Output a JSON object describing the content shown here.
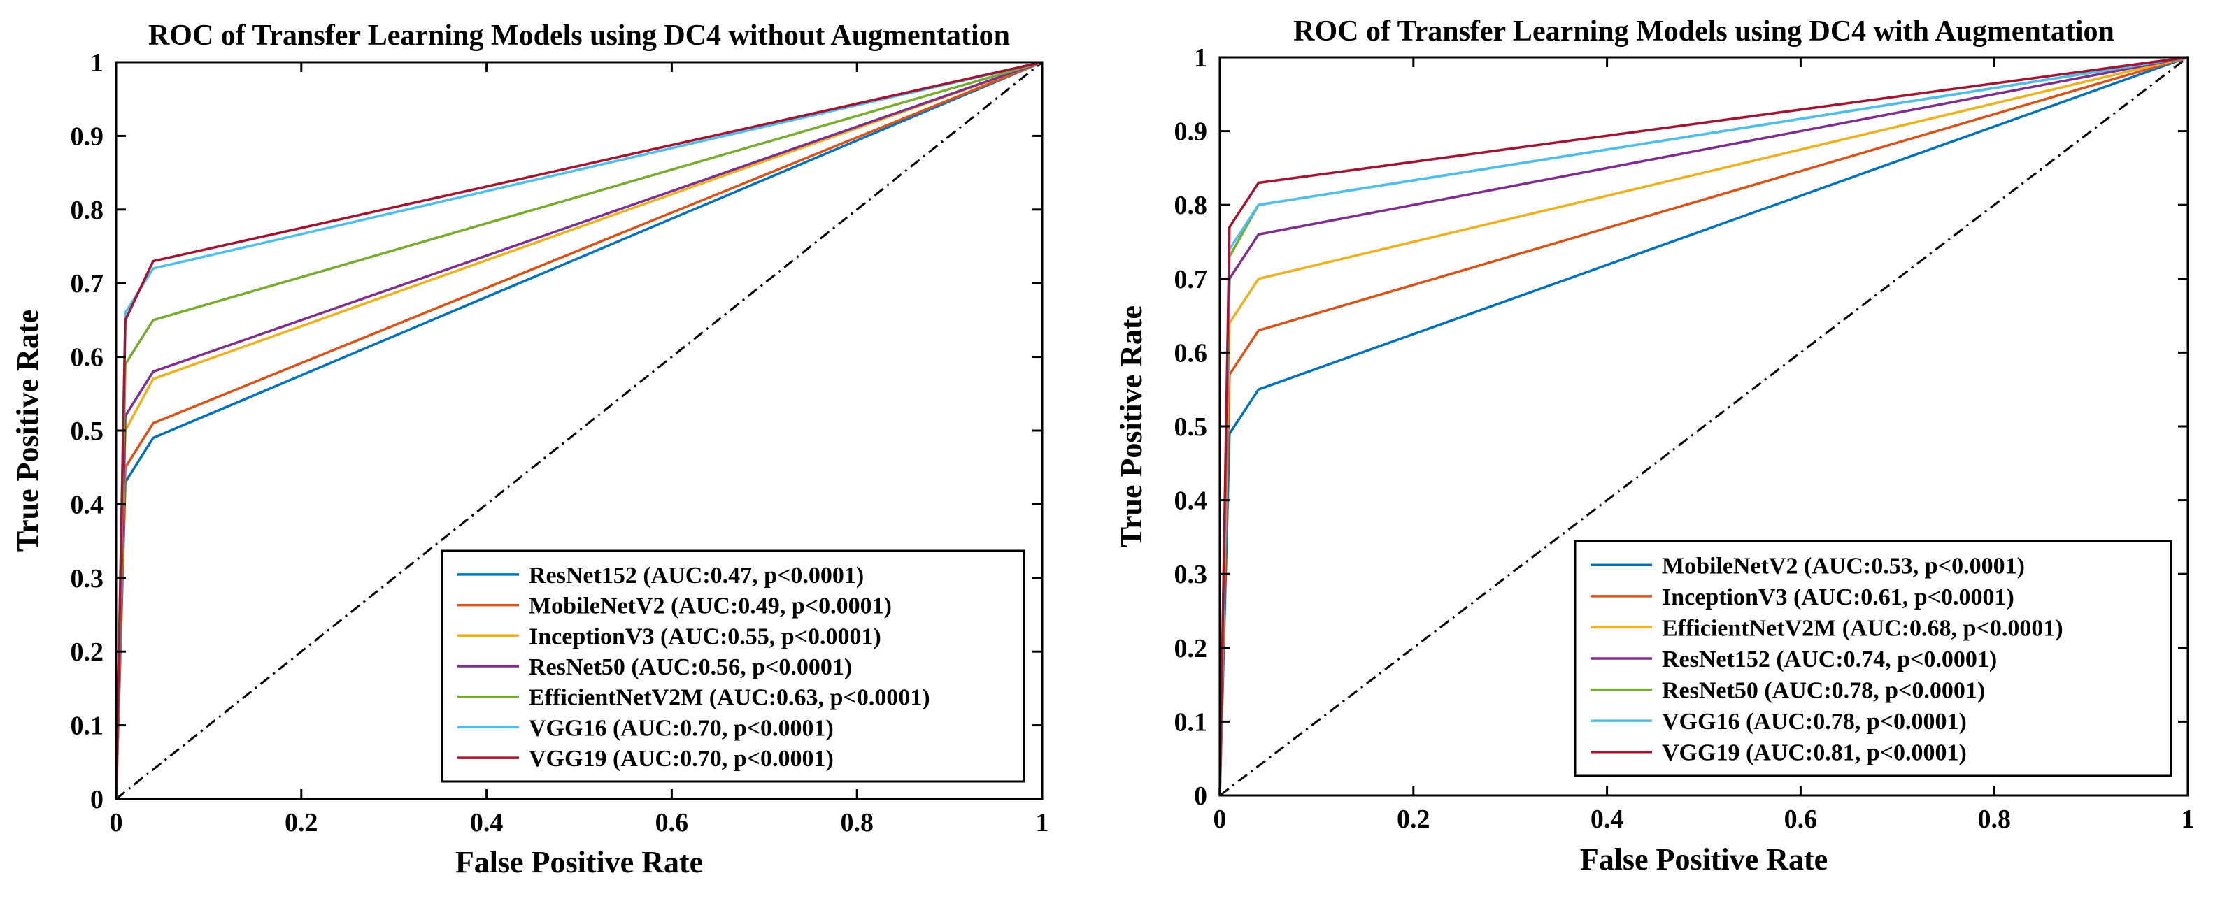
{
  "chart_data": [
    {
      "type": "line",
      "title": "ROC of Transfer Learning Models using DC4 without Augmentation",
      "xlabel": "False Positive Rate",
      "ylabel": "True Positive Rate",
      "xlim": [
        0,
        1
      ],
      "ylim": [
        0,
        1
      ],
      "xticks": [
        "0",
        "0.2",
        "0.4",
        "0.6",
        "0.8",
        "1"
      ],
      "yticks": [
        "0",
        "0.1",
        "0.2",
        "0.3",
        "0.4",
        "0.5",
        "0.6",
        "0.7",
        "0.8",
        "0.9",
        "1"
      ],
      "legend_position": "bottom-right",
      "diagonal": {
        "style": "dash-dot",
        "color": "#000000",
        "x": [
          0,
          1
        ],
        "y": [
          0,
          1
        ]
      },
      "series": [
        {
          "name": "ResNet152",
          "label": "ResNet152 (AUC:0.47, p<0.0001)",
          "color": "#0072BD",
          "x": [
            0,
            0.01,
            0.04,
            1
          ],
          "y": [
            0,
            0.43,
            0.49,
            1
          ]
        },
        {
          "name": "MobileNetV2",
          "label": "MobileNetV2 (AUC:0.49, p<0.0001)",
          "color": "#D95319",
          "x": [
            0,
            0.01,
            0.04,
            1
          ],
          "y": [
            0,
            0.45,
            0.51,
            1
          ]
        },
        {
          "name": "InceptionV3",
          "label": "InceptionV3 (AUC:0.55, p<0.0001)",
          "color": "#EDB120",
          "x": [
            0,
            0.01,
            0.04,
            1
          ],
          "y": [
            0,
            0.5,
            0.57,
            1
          ]
        },
        {
          "name": "ResNet50",
          "label": "ResNet50 (AUC:0.56, p<0.0001)",
          "color": "#7E2F8E",
          "x": [
            0,
            0.01,
            0.04,
            1
          ],
          "y": [
            0,
            0.52,
            0.58,
            1
          ]
        },
        {
          "name": "EfficientNetV2M",
          "label": "EfficientNetV2M (AUC:0.63, p<0.0001)",
          "color": "#77AC30",
          "x": [
            0,
            0.01,
            0.04,
            1
          ],
          "y": [
            0,
            0.59,
            0.65,
            1
          ]
        },
        {
          "name": "VGG16",
          "label": "VGG16 (AUC:0.70, p<0.0001)",
          "color": "#4DBEEE",
          "x": [
            0,
            0.01,
            0.04,
            1
          ],
          "y": [
            0,
            0.66,
            0.72,
            1
          ]
        },
        {
          "name": "VGG19",
          "label": "VGG19 (AUC:0.70, p<0.0001)",
          "color": "#A2142F",
          "x": [
            0,
            0.01,
            0.04,
            1
          ],
          "y": [
            0,
            0.65,
            0.73,
            1
          ]
        }
      ]
    },
    {
      "type": "line",
      "title": "ROC of Transfer Learning Models using DC4 with Augmentation",
      "xlabel": "False Positive Rate",
      "ylabel": "True Positive Rate",
      "xlim": [
        0,
        1
      ],
      "ylim": [
        0,
        1
      ],
      "xticks": [
        "0",
        "0.2",
        "0.4",
        "0.6",
        "0.8",
        "1"
      ],
      "yticks": [
        "0",
        "0.1",
        "0.2",
        "0.3",
        "0.4",
        "0.5",
        "0.6",
        "0.7",
        "0.8",
        "0.9",
        "1"
      ],
      "legend_position": "bottom-right",
      "diagonal": {
        "style": "dash-dot",
        "color": "#000000",
        "x": [
          0,
          1
        ],
        "y": [
          0,
          1
        ]
      },
      "series": [
        {
          "name": "MobileNetV2",
          "label": "MobileNetV2 (AUC:0.53, p<0.0001)",
          "color": "#0072BD",
          "x": [
            0,
            0.01,
            0.04,
            1
          ],
          "y": [
            0,
            0.49,
            0.55,
            1
          ]
        },
        {
          "name": "InceptionV3",
          "label": "InceptionV3 (AUC:0.61, p<0.0001)",
          "color": "#D95319",
          "x": [
            0,
            0.01,
            0.04,
            1
          ],
          "y": [
            0,
            0.57,
            0.63,
            1
          ]
        },
        {
          "name": "EfficientNetV2M",
          "label": "EfficientNetV2M (AUC:0.68, p<0.0001)",
          "color": "#EDB120",
          "x": [
            0,
            0.01,
            0.04,
            1
          ],
          "y": [
            0,
            0.64,
            0.7,
            1
          ]
        },
        {
          "name": "ResNet152",
          "label": "ResNet152 (AUC:0.74, p<0.0001)",
          "color": "#7E2F8E",
          "x": [
            0,
            0.01,
            0.04,
            1
          ],
          "y": [
            0,
            0.7,
            0.76,
            1
          ]
        },
        {
          "name": "ResNet50",
          "label": "ResNet50 (AUC:0.78, p<0.0001)",
          "color": "#77AC30",
          "x": [
            0,
            0.01,
            0.04,
            1
          ],
          "y": [
            0,
            0.73,
            0.8,
            1
          ]
        },
        {
          "name": "VGG16",
          "label": "VGG16 (AUC:0.78, p<0.0001)",
          "color": "#4DBEEE",
          "x": [
            0,
            0.01,
            0.04,
            1
          ],
          "y": [
            0,
            0.74,
            0.8,
            1
          ]
        },
        {
          "name": "VGG19",
          "label": "VGG19 (AUC:0.81, p<0.0001)",
          "color": "#A2142F",
          "x": [
            0,
            0.01,
            0.04,
            1
          ],
          "y": [
            0,
            0.77,
            0.83,
            1
          ]
        }
      ]
    }
  ]
}
